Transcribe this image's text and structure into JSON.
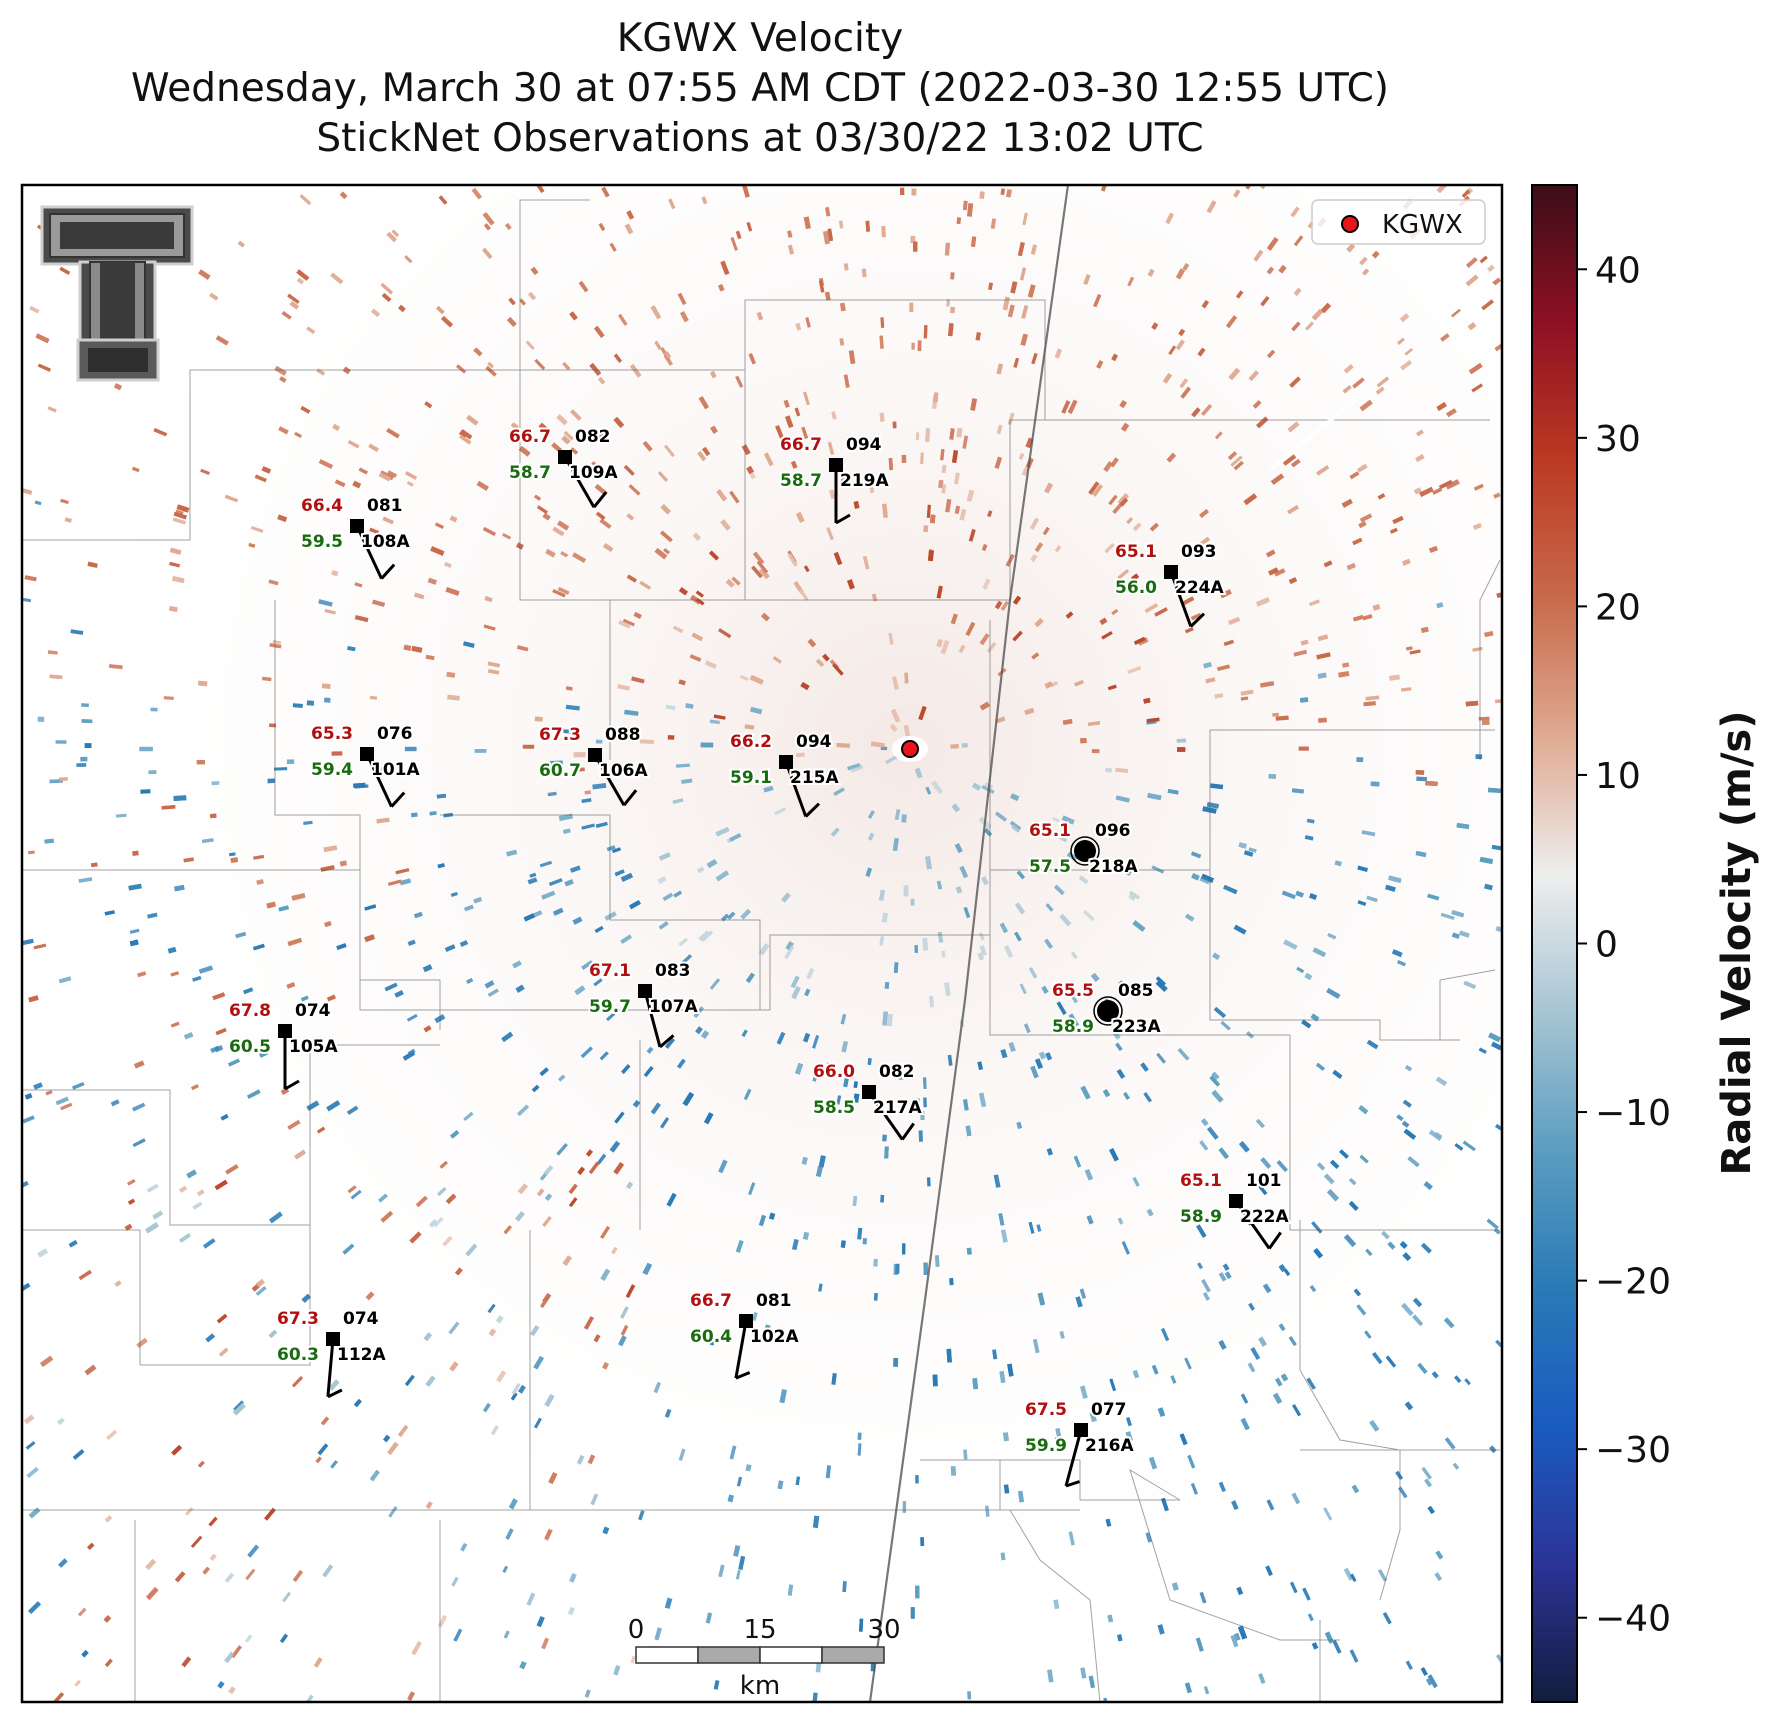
{
  "title": {
    "line1": "KGWX Velocity",
    "line2": "Wednesday, March 30 at 07:55 AM CDT (2022-03-30 12:55 UTC)",
    "line3": "StickNet Observations at 03/30/22 13:02 UTC"
  },
  "legend": {
    "label": "KGWX",
    "marker_color": "#e8161b"
  },
  "colorbar": {
    "label": "Radial Velocity (m/s)",
    "range": [
      -45,
      45
    ],
    "ticks": [
      "40",
      "30",
      "20",
      "10",
      "0",
      "−10",
      "−20",
      "−30",
      "−40"
    ],
    "tick_values": [
      40,
      30,
      20,
      10,
      0,
      -10,
      -20,
      -30,
      -40
    ],
    "colors": [
      "#131c3d",
      "#2c3497",
      "#1a5bc0",
      "#2a7ab6",
      "#5c9dc0",
      "#a7c5d3",
      "#eeeeee",
      "#dfaa92",
      "#c86a4b",
      "#bb3a22",
      "#8f1024",
      "#3c0e17"
    ]
  },
  "scalebar": {
    "labels": [
      "0",
      "15",
      "30"
    ],
    "unit": "km"
  },
  "logo": "texas-tech-logo",
  "stations": [
    {
      "id": "109A",
      "temp": "66.7",
      "dew": "58.7",
      "dir": "082"
    },
    {
      "id": "219A",
      "temp": "66.7",
      "dew": "58.7",
      "dir": "094"
    },
    {
      "id": "108A",
      "temp": "66.4",
      "dew": "59.5",
      "dir": "081"
    },
    {
      "id": "224A",
      "temp": "65.1",
      "dew": "56.0",
      "dir": "093"
    },
    {
      "id": "101A",
      "temp": "65.3",
      "dew": "59.4",
      "dir": "076"
    },
    {
      "id": "106A",
      "temp": "67.3",
      "dew": "60.7",
      "dir": "088"
    },
    {
      "id": "215A",
      "temp": "66.2",
      "dew": "59.1",
      "dir": "094"
    },
    {
      "id": "218A",
      "temp": "65.1",
      "dew": "57.5",
      "dir": "096"
    },
    {
      "id": "107A",
      "temp": "67.1",
      "dew": "59.7",
      "dir": "083"
    },
    {
      "id": "223A",
      "temp": "65.5",
      "dew": "58.9",
      "dir": "085"
    },
    {
      "id": "105A",
      "temp": "67.8",
      "dew": "60.5",
      "dir": "074"
    },
    {
      "id": "217A",
      "temp": "66.0",
      "dew": "58.5",
      "dir": "082"
    },
    {
      "id": "222A",
      "temp": "65.1",
      "dew": "58.9",
      "dir": "101"
    },
    {
      "id": "102A",
      "temp": "66.7",
      "dew": "60.4",
      "dir": "081"
    },
    {
      "id": "112A",
      "temp": "67.3",
      "dew": "60.3",
      "dir": "074"
    },
    {
      "id": "216A",
      "temp": "67.5",
      "dew": "59.9",
      "dir": "077"
    }
  ]
}
